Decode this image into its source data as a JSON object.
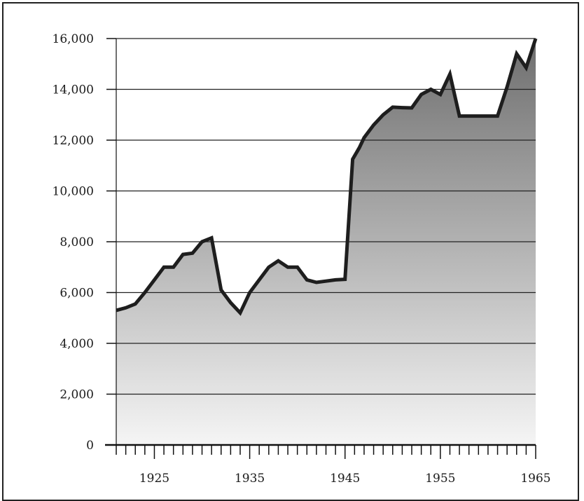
{
  "chart_data": {
    "type": "area",
    "title": "",
    "xlabel": "",
    "ylabel": "",
    "xlim": [
      1921,
      1965
    ],
    "ylim": [
      0,
      16000
    ],
    "grid": true,
    "legend": "none",
    "y_ticks": [
      0,
      2000,
      4000,
      6000,
      8000,
      10000,
      12000,
      14000,
      16000
    ],
    "y_tick_labels": [
      "0",
      "2,000",
      "4,000",
      "6,000",
      "8,000",
      "10,000",
      "12,000",
      "14,000",
      "16,000"
    ],
    "x_ticks": [
      1925,
      1935,
      1945,
      1955,
      1965
    ],
    "x_tick_labels": [
      "1925",
      "1935",
      "1945",
      "1955",
      "1965"
    ],
    "colors": {
      "line": "#1e1e1e",
      "fill_top": "#6e6e6e",
      "fill_bottom": "#f5f5f5"
    },
    "series": [
      {
        "x": [
          1921,
          1922,
          1923,
          1924,
          1925,
          1926,
          1927,
          1928,
          1929,
          1930,
          1931,
          1932,
          1933,
          1934,
          1935,
          1936,
          1937,
          1938,
          1939,
          1940,
          1941,
          1942,
          1943,
          1944,
          1945,
          1945.8,
          1946.5,
          1947,
          1948,
          1949,
          1950,
          1951,
          1952,
          1953,
          1954,
          1955,
          1956,
          1957,
          1958,
          1959,
          1960,
          1961,
          1962,
          1963,
          1964,
          1965
        ],
        "values": [
          5300,
          5400,
          5550,
          6000,
          6500,
          7000,
          7000,
          7500,
          7550,
          8000,
          8150,
          6100,
          5600,
          5200,
          6000,
          6500,
          7000,
          7250,
          7000,
          7000,
          6500,
          6400,
          6450,
          6500,
          6520,
          11250,
          11700,
          12100,
          12600,
          13000,
          13300,
          13280,
          13270,
          13800,
          14000,
          13800,
          14600,
          12950,
          12950,
          12950,
          12950,
          12950,
          14100,
          15400,
          14850,
          16000
        ]
      }
    ]
  }
}
